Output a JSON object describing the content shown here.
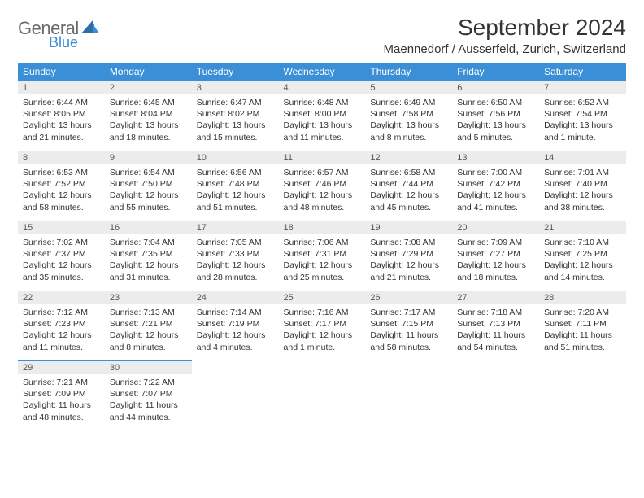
{
  "brand": {
    "general": "General",
    "blue": "Blue"
  },
  "title": "September 2024",
  "location": "Maennedorf / Ausserfeld, Zurich, Switzerland",
  "colors": {
    "header_bg": "#3a8fd6",
    "header_text": "#ffffff",
    "daynum_bg": "#ececec",
    "text": "#333333",
    "logo_gray": "#6b6b6b",
    "logo_blue": "#3a8fd6",
    "border": "#3a8fd6"
  },
  "daysOfWeek": [
    "Sunday",
    "Monday",
    "Tuesday",
    "Wednesday",
    "Thursday",
    "Friday",
    "Saturday"
  ],
  "weeks": [
    [
      {
        "n": "1",
        "sunrise": "Sunrise: 6:44 AM",
        "sunset": "Sunset: 8:05 PM",
        "daylight": "Daylight: 13 hours and 21 minutes."
      },
      {
        "n": "2",
        "sunrise": "Sunrise: 6:45 AM",
        "sunset": "Sunset: 8:04 PM",
        "daylight": "Daylight: 13 hours and 18 minutes."
      },
      {
        "n": "3",
        "sunrise": "Sunrise: 6:47 AM",
        "sunset": "Sunset: 8:02 PM",
        "daylight": "Daylight: 13 hours and 15 minutes."
      },
      {
        "n": "4",
        "sunrise": "Sunrise: 6:48 AM",
        "sunset": "Sunset: 8:00 PM",
        "daylight": "Daylight: 13 hours and 11 minutes."
      },
      {
        "n": "5",
        "sunrise": "Sunrise: 6:49 AM",
        "sunset": "Sunset: 7:58 PM",
        "daylight": "Daylight: 13 hours and 8 minutes."
      },
      {
        "n": "6",
        "sunrise": "Sunrise: 6:50 AM",
        "sunset": "Sunset: 7:56 PM",
        "daylight": "Daylight: 13 hours and 5 minutes."
      },
      {
        "n": "7",
        "sunrise": "Sunrise: 6:52 AM",
        "sunset": "Sunset: 7:54 PM",
        "daylight": "Daylight: 13 hours and 1 minute."
      }
    ],
    [
      {
        "n": "8",
        "sunrise": "Sunrise: 6:53 AM",
        "sunset": "Sunset: 7:52 PM",
        "daylight": "Daylight: 12 hours and 58 minutes."
      },
      {
        "n": "9",
        "sunrise": "Sunrise: 6:54 AM",
        "sunset": "Sunset: 7:50 PM",
        "daylight": "Daylight: 12 hours and 55 minutes."
      },
      {
        "n": "10",
        "sunrise": "Sunrise: 6:56 AM",
        "sunset": "Sunset: 7:48 PM",
        "daylight": "Daylight: 12 hours and 51 minutes."
      },
      {
        "n": "11",
        "sunrise": "Sunrise: 6:57 AM",
        "sunset": "Sunset: 7:46 PM",
        "daylight": "Daylight: 12 hours and 48 minutes."
      },
      {
        "n": "12",
        "sunrise": "Sunrise: 6:58 AM",
        "sunset": "Sunset: 7:44 PM",
        "daylight": "Daylight: 12 hours and 45 minutes."
      },
      {
        "n": "13",
        "sunrise": "Sunrise: 7:00 AM",
        "sunset": "Sunset: 7:42 PM",
        "daylight": "Daylight: 12 hours and 41 minutes."
      },
      {
        "n": "14",
        "sunrise": "Sunrise: 7:01 AM",
        "sunset": "Sunset: 7:40 PM",
        "daylight": "Daylight: 12 hours and 38 minutes."
      }
    ],
    [
      {
        "n": "15",
        "sunrise": "Sunrise: 7:02 AM",
        "sunset": "Sunset: 7:37 PM",
        "daylight": "Daylight: 12 hours and 35 minutes."
      },
      {
        "n": "16",
        "sunrise": "Sunrise: 7:04 AM",
        "sunset": "Sunset: 7:35 PM",
        "daylight": "Daylight: 12 hours and 31 minutes."
      },
      {
        "n": "17",
        "sunrise": "Sunrise: 7:05 AM",
        "sunset": "Sunset: 7:33 PM",
        "daylight": "Daylight: 12 hours and 28 minutes."
      },
      {
        "n": "18",
        "sunrise": "Sunrise: 7:06 AM",
        "sunset": "Sunset: 7:31 PM",
        "daylight": "Daylight: 12 hours and 25 minutes."
      },
      {
        "n": "19",
        "sunrise": "Sunrise: 7:08 AM",
        "sunset": "Sunset: 7:29 PM",
        "daylight": "Daylight: 12 hours and 21 minutes."
      },
      {
        "n": "20",
        "sunrise": "Sunrise: 7:09 AM",
        "sunset": "Sunset: 7:27 PM",
        "daylight": "Daylight: 12 hours and 18 minutes."
      },
      {
        "n": "21",
        "sunrise": "Sunrise: 7:10 AM",
        "sunset": "Sunset: 7:25 PM",
        "daylight": "Daylight: 12 hours and 14 minutes."
      }
    ],
    [
      {
        "n": "22",
        "sunrise": "Sunrise: 7:12 AM",
        "sunset": "Sunset: 7:23 PM",
        "daylight": "Daylight: 12 hours and 11 minutes."
      },
      {
        "n": "23",
        "sunrise": "Sunrise: 7:13 AM",
        "sunset": "Sunset: 7:21 PM",
        "daylight": "Daylight: 12 hours and 8 minutes."
      },
      {
        "n": "24",
        "sunrise": "Sunrise: 7:14 AM",
        "sunset": "Sunset: 7:19 PM",
        "daylight": "Daylight: 12 hours and 4 minutes."
      },
      {
        "n": "25",
        "sunrise": "Sunrise: 7:16 AM",
        "sunset": "Sunset: 7:17 PM",
        "daylight": "Daylight: 12 hours and 1 minute."
      },
      {
        "n": "26",
        "sunrise": "Sunrise: 7:17 AM",
        "sunset": "Sunset: 7:15 PM",
        "daylight": "Daylight: 11 hours and 58 minutes."
      },
      {
        "n": "27",
        "sunrise": "Sunrise: 7:18 AM",
        "sunset": "Sunset: 7:13 PM",
        "daylight": "Daylight: 11 hours and 54 minutes."
      },
      {
        "n": "28",
        "sunrise": "Sunrise: 7:20 AM",
        "sunset": "Sunset: 7:11 PM",
        "daylight": "Daylight: 11 hours and 51 minutes."
      }
    ],
    [
      {
        "n": "29",
        "sunrise": "Sunrise: 7:21 AM",
        "sunset": "Sunset: 7:09 PM",
        "daylight": "Daylight: 11 hours and 48 minutes."
      },
      {
        "n": "30",
        "sunrise": "Sunrise: 7:22 AM",
        "sunset": "Sunset: 7:07 PM",
        "daylight": "Daylight: 11 hours and 44 minutes."
      },
      null,
      null,
      null,
      null,
      null
    ]
  ]
}
